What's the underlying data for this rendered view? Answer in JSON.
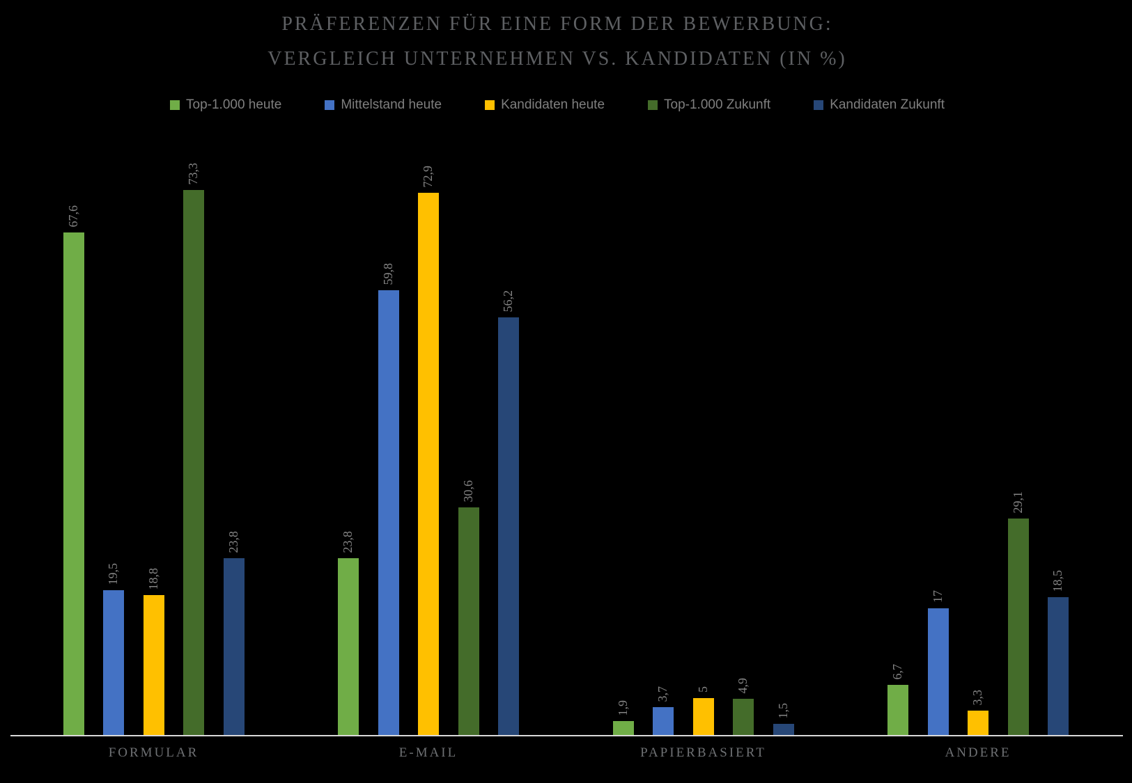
{
  "chart": {
    "title_line1": "PRÄFERENZEN FÜR EINE FORM DER BEWERBUNG:",
    "title_line2": "VERGLEICH UNTERNEHMEN VS. KANDIDATEN (IN %)"
  },
  "chart_data": {
    "type": "bar",
    "title": "Präferenzen für eine Form der Bewerbung: Vergleich Unternehmen vs. Kandidaten (in %)",
    "categories": [
      "FORMULAR",
      "E-MAIL",
      "PAPIERBASIERT",
      "ANDERE"
    ],
    "series": [
      {
        "name": "Top-1.000 heute",
        "color": "#70AD47",
        "values": [
          67.6,
          23.8,
          1.9,
          6.7
        ],
        "value_labels": [
          "67,6",
          "23,8",
          "1,9",
          "6,7"
        ]
      },
      {
        "name": "Mittelstand heute",
        "color": "#4472C4",
        "values": [
          19.5,
          59.8,
          3.7,
          17
        ],
        "value_labels": [
          "19,5",
          "59,8",
          "3,7",
          "17"
        ]
      },
      {
        "name": "Kandidaten heute",
        "color": "#FFC000",
        "values": [
          18.8,
          72.9,
          5,
          3.3
        ],
        "value_labels": [
          "18,8",
          "72,9",
          "5",
          "3,3"
        ]
      },
      {
        "name": "Top-1.000 Zukunft",
        "color": "#446C2A",
        "values": [
          73.3,
          30.6,
          4.9,
          29.1
        ],
        "value_labels": [
          "73,3",
          "30,6",
          "4,9",
          "29,1"
        ]
      },
      {
        "name": "Kandidaten Zukunft",
        "color": "#274777",
        "values": [
          23.8,
          56.2,
          1.5,
          18.5
        ],
        "value_labels": [
          "23,8",
          "56,2",
          "1,5",
          "18,5"
        ]
      }
    ],
    "ylim": [
      0,
      80
    ],
    "grid": false,
    "y_axis_visible": false,
    "legend_position": "top",
    "value_labels_rotated": true,
    "background_color": "#000000",
    "axis_line_color": "#D9D9D9"
  }
}
